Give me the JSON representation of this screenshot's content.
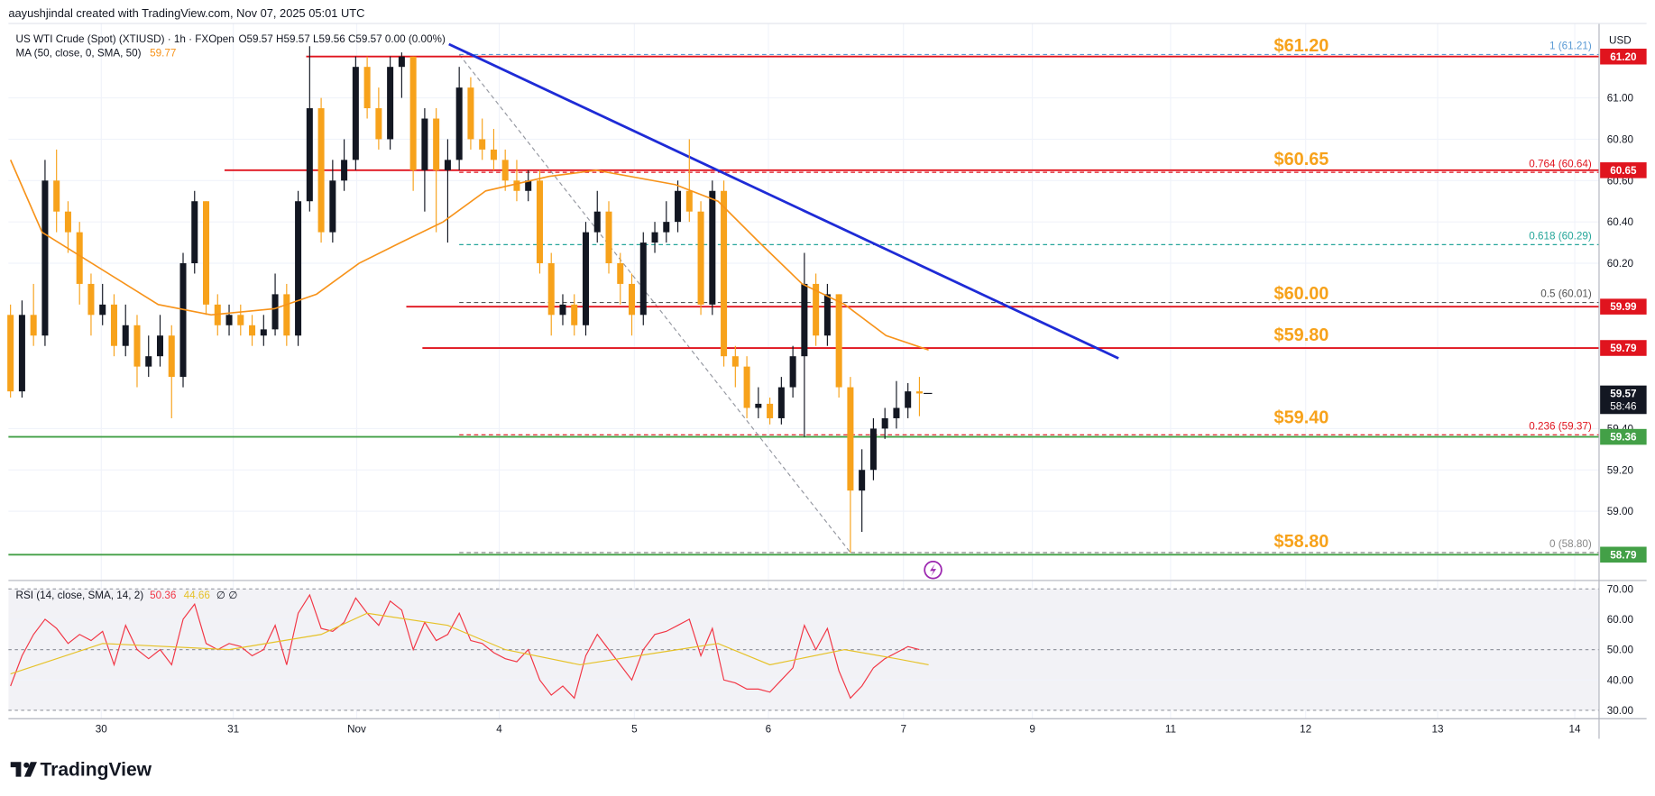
{
  "header": {
    "attribution": "aayushjindal created with TradingView.com, Nov 07, 2025 05:01 UTC",
    "branding": "TradingView"
  },
  "chart_data": {
    "type": "candlestick",
    "symbol": "US WTI Crude (Spot) (XTIUSD) · 1h · FXOpen",
    "ohlc": "O59.57 H59.57 L59.56 C59.57 0.00 (0.00%)",
    "currency": "USD",
    "up_color": "#131722",
    "down_color": "#f7a21b",
    "xlim": [
      -0.18,
      138.07
    ],
    "xticks": [
      {
        "value": 7.89,
        "label": "30"
      },
      {
        "value": 19.36,
        "label": "31"
      },
      {
        "value": 30.09,
        "label": "Nov"
      },
      {
        "value": 42.48,
        "label": "4"
      },
      {
        "value": 54.22,
        "label": "5"
      },
      {
        "value": 65.87,
        "label": "6"
      },
      {
        "value": 77.61,
        "label": "7"
      },
      {
        "value": 88.81,
        "label": "9"
      },
      {
        "value": 100.83,
        "label": "11"
      },
      {
        "value": 112.57,
        "label": "12"
      },
      {
        "value": 124.04,
        "label": "13"
      },
      {
        "value": 135.96,
        "label": "14"
      }
    ],
    "ylim": [
      58.67,
      61.36
    ],
    "yticks": [
      {
        "value": 61,
        "label": "61.00"
      },
      {
        "value": 60.8,
        "label": "60.80"
      },
      {
        "value": 60.6,
        "label": "60.60"
      },
      {
        "value": 60.4,
        "label": "60.40"
      },
      {
        "value": 60.2,
        "label": "60.20"
      },
      {
        "value": 59.4,
        "label": "59.40"
      },
      {
        "value": 59.2,
        "label": "59.20"
      },
      {
        "value": 59,
        "label": "59.00"
      }
    ],
    "grid": true,
    "candles": [
      [
        59.95,
        60.0,
        59.55,
        59.58
      ],
      [
        59.58,
        60.02,
        59.55,
        59.95
      ],
      [
        59.95,
        60.1,
        59.8,
        59.85
      ],
      [
        59.85,
        60.7,
        59.8,
        60.6
      ],
      [
        60.6,
        60.75,
        60.35,
        60.45
      ],
      [
        60.45,
        60.5,
        60.25,
        60.35
      ],
      [
        60.35,
        60.4,
        60.0,
        60.1
      ],
      [
        60.1,
        60.15,
        59.85,
        59.95
      ],
      [
        59.95,
        60.1,
        59.9,
        60.0
      ],
      [
        60.0,
        60.05,
        59.75,
        59.8
      ],
      [
        59.8,
        60.0,
        59.75,
        59.9
      ],
      [
        59.9,
        59.95,
        59.6,
        59.7
      ],
      [
        59.7,
        59.85,
        59.65,
        59.75
      ],
      [
        59.75,
        59.95,
        59.7,
        59.85
      ],
      [
        59.85,
        59.9,
        59.45,
        59.65
      ],
      [
        59.65,
        60.25,
        59.6,
        60.2
      ],
      [
        60.2,
        60.55,
        60.15,
        60.5
      ],
      [
        60.5,
        60.5,
        59.95,
        60.0
      ],
      [
        60.0,
        60.05,
        59.85,
        59.9
      ],
      [
        59.9,
        60.0,
        59.85,
        59.95
      ],
      [
        59.95,
        60.0,
        59.85,
        59.9
      ],
      [
        59.9,
        59.95,
        59.8,
        59.85
      ],
      [
        59.85,
        59.95,
        59.8,
        59.88
      ],
      [
        59.88,
        60.15,
        59.85,
        60.05
      ],
      [
        60.05,
        60.1,
        59.8,
        59.85
      ],
      [
        59.85,
        60.55,
        59.8,
        60.5
      ],
      [
        60.5,
        61.25,
        60.45,
        60.95
      ],
      [
        60.95,
        61.0,
        60.3,
        60.35
      ],
      [
        60.35,
        60.7,
        60.3,
        60.6
      ],
      [
        60.6,
        60.8,
        60.55,
        60.7
      ],
      [
        60.7,
        61.2,
        60.65,
        61.15
      ],
      [
        61.15,
        61.2,
        60.9,
        60.95
      ],
      [
        60.95,
        61.05,
        60.75,
        60.8
      ],
      [
        60.8,
        61.2,
        60.75,
        61.15
      ],
      [
        61.15,
        61.22,
        61.0,
        61.2
      ],
      [
        61.2,
        61.2,
        60.55,
        60.65
      ],
      [
        60.65,
        60.95,
        60.45,
        60.9
      ],
      [
        60.9,
        60.95,
        60.35,
        60.65
      ],
      [
        60.65,
        60.8,
        60.3,
        60.7
      ],
      [
        60.7,
        61.15,
        60.65,
        61.05
      ],
      [
        61.05,
        61.1,
        60.75,
        60.8
      ],
      [
        60.8,
        60.9,
        60.7,
        60.75
      ],
      [
        60.75,
        60.85,
        60.65,
        60.7
      ],
      [
        60.7,
        60.75,
        60.55,
        60.6
      ],
      [
        60.6,
        60.7,
        60.5,
        60.55
      ],
      [
        60.55,
        60.65,
        60.5,
        60.6
      ],
      [
        60.6,
        60.65,
        60.15,
        60.2
      ],
      [
        60.2,
        60.25,
        59.85,
        59.95
      ],
      [
        59.95,
        60.05,
        59.9,
        60.0
      ],
      [
        60.0,
        60.05,
        59.85,
        59.9
      ],
      [
        59.9,
        60.4,
        59.85,
        60.35
      ],
      [
        60.35,
        60.55,
        60.3,
        60.45
      ],
      [
        60.45,
        60.5,
        60.15,
        60.2
      ],
      [
        60.2,
        60.25,
        60.0,
        60.1
      ],
      [
        60.1,
        60.15,
        59.85,
        59.95
      ],
      [
        59.95,
        60.35,
        59.9,
        60.3
      ],
      [
        60.3,
        60.4,
        60.25,
        60.35
      ],
      [
        60.35,
        60.5,
        60.3,
        60.4
      ],
      [
        60.4,
        60.6,
        60.35,
        60.55
      ],
      [
        60.55,
        60.8,
        60.4,
        60.45
      ],
      [
        60.45,
        60.5,
        59.95,
        60.0
      ],
      [
        60.0,
        60.6,
        59.95,
        60.55
      ],
      [
        60.55,
        60.6,
        59.7,
        59.75
      ],
      [
        59.75,
        59.8,
        59.6,
        59.7
      ],
      [
        59.7,
        59.75,
        59.45,
        59.5
      ],
      [
        59.5,
        59.6,
        59.45,
        59.52
      ],
      [
        59.52,
        59.55,
        59.42,
        59.45
      ],
      [
        59.45,
        59.65,
        59.42,
        59.6
      ],
      [
        59.6,
        59.8,
        59.55,
        59.75
      ],
      [
        59.75,
        60.25,
        59.36,
        60.1
      ],
      [
        60.1,
        60.15,
        59.8,
        59.85
      ],
      [
        59.85,
        60.1,
        59.8,
        60.05
      ],
      [
        60.05,
        60.05,
        59.55,
        59.6
      ],
      [
        59.6,
        59.65,
        58.8,
        59.1
      ],
      [
        59.1,
        59.3,
        58.9,
        59.2
      ],
      [
        59.2,
        59.45,
        59.15,
        59.4
      ],
      [
        59.4,
        59.5,
        59.35,
        59.45
      ],
      [
        59.45,
        59.63,
        59.4,
        59.5
      ],
      [
        59.5,
        59.62,
        59.45,
        59.58
      ],
      [
        59.58,
        59.65,
        59.46,
        59.57
      ]
    ],
    "ma": {
      "name": "MA (50, close, 0, SMA, 50)",
      "last": 59.77,
      "color": "#f7931a",
      "x": [
        0,
        2.75,
        12.84,
        17.43,
        22.94,
        26.6,
        30.3,
        33.9,
        37.6,
        41.3,
        46.8,
        50.9,
        57.8,
        61.5,
        65.1,
        68.8,
        72.5,
        76.1,
        79.8
      ],
      "values": [
        60.7,
        60.35,
        60.0,
        59.95,
        59.98,
        60.05,
        60.2,
        60.3,
        60.4,
        60.55,
        60.62,
        60.65,
        60.58,
        60.5,
        60.3,
        60.1,
        60.0,
        59.85,
        59.78
      ]
    },
    "levels": [
      {
        "value": 61.2,
        "axis_label": "61.20",
        "color": "#e0141e",
        "from": 25.7,
        "annotation": {
          "value": 61.2,
          "label": "$61.20"
        }
      },
      {
        "value": 60.65,
        "axis_label": "60.65",
        "color": "#e0141e",
        "from": 18.6,
        "annotation": {
          "value": 60.65,
          "label": "$60.65"
        }
      },
      {
        "value": 59.99,
        "axis_label": "59.99",
        "color": "#e0141e",
        "from": 34.4,
        "annotation": {
          "value": 60,
          "label": "$60.00"
        }
      },
      {
        "value": 59.79,
        "axis_label": "59.79",
        "color": "#e0141e",
        "from": 35.8,
        "annotation": {
          "value": 59.8,
          "label": "$59.80"
        }
      },
      {
        "value": 59.36,
        "axis_label": "59.36",
        "color": "#43a047",
        "annotation": {
          "value": 59.4,
          "label": "$59.40"
        }
      },
      {
        "value": 58.79,
        "axis_label": "58.79",
        "color": "#43a047",
        "annotation": {
          "value": 58.8,
          "label": "$58.80"
        }
      }
    ],
    "annotation_color": "#f7a21b",
    "fib": {
      "anchor": {
        "x": [
          39,
          73
        ],
        "values": [
          61.21,
          58.8
        ]
      },
      "levels": [
        {
          "value": 61.21,
          "label": "1 (61.21)",
          "color": "#5b9bd5"
        },
        {
          "value": 60.64,
          "label": "0.764 (60.64)",
          "color": "#e0141e"
        },
        {
          "value": 60.29,
          "label": "0.618 (60.29)",
          "color": "#26a69a"
        },
        {
          "value": 60.01,
          "label": "0.5 (60.01)",
          "color": "#555555"
        },
        {
          "value": 59.37,
          "label": "0.236 (59.37)",
          "color": "#e0141e"
        },
        {
          "value": 58.8,
          "label": "0 (58.80)",
          "color": "#888888"
        }
      ]
    },
    "trendline": {
      "color": "#1e2bd6",
      "x": [
        38.1,
        96.3
      ],
      "values": [
        61.26,
        59.74
      ]
    },
    "last_price": {
      "value": 59.57,
      "countdown": "58:46"
    },
    "rsi": {
      "name": "RSI (14, close, SMA, 14, 2)",
      "last": 50.36,
      "ma_last": 44.66,
      "extra": "∅ ∅",
      "color": "#f23645",
      "ma_color": "#e6c229",
      "ylim": [
        27.22,
        72.78
      ],
      "yticks": [
        {
          "value": 70,
          "label": "70.00"
        },
        {
          "value": 60,
          "label": "60.00"
        },
        {
          "value": 50,
          "label": "50.00"
        },
        {
          "value": 40,
          "label": "40.00"
        },
        {
          "value": 30,
          "label": "30.00"
        }
      ],
      "values": [
        38,
        48,
        55,
        60,
        57,
        52,
        55,
        53,
        56,
        45,
        58,
        50,
        47,
        50,
        45,
        60,
        65,
        52,
        50,
        52,
        51,
        48,
        50,
        58,
        45,
        62,
        68,
        57,
        56,
        59,
        67,
        62,
        58,
        66,
        63,
        50,
        59,
        53,
        55,
        62,
        53,
        52,
        49,
        47,
        46,
        50,
        40,
        35,
        38,
        34,
        48,
        55,
        50,
        45,
        40,
        50,
        55,
        56,
        58,
        60,
        48,
        57,
        40,
        39,
        37,
        37,
        36,
        40,
        44,
        58,
        50,
        57,
        43,
        34,
        38,
        44,
        47,
        49,
        51,
        50
      ],
      "ma": {
        "x": [
          0,
          8,
          19,
          27,
          31,
          38,
          43,
          49.5,
          58,
          61.5,
          66,
          72.5,
          77,
          79.8
        ],
        "values": [
          42,
          52,
          50,
          55,
          62,
          58,
          50,
          45,
          50,
          52,
          45,
          50,
          47,
          45
        ]
      }
    }
  }
}
